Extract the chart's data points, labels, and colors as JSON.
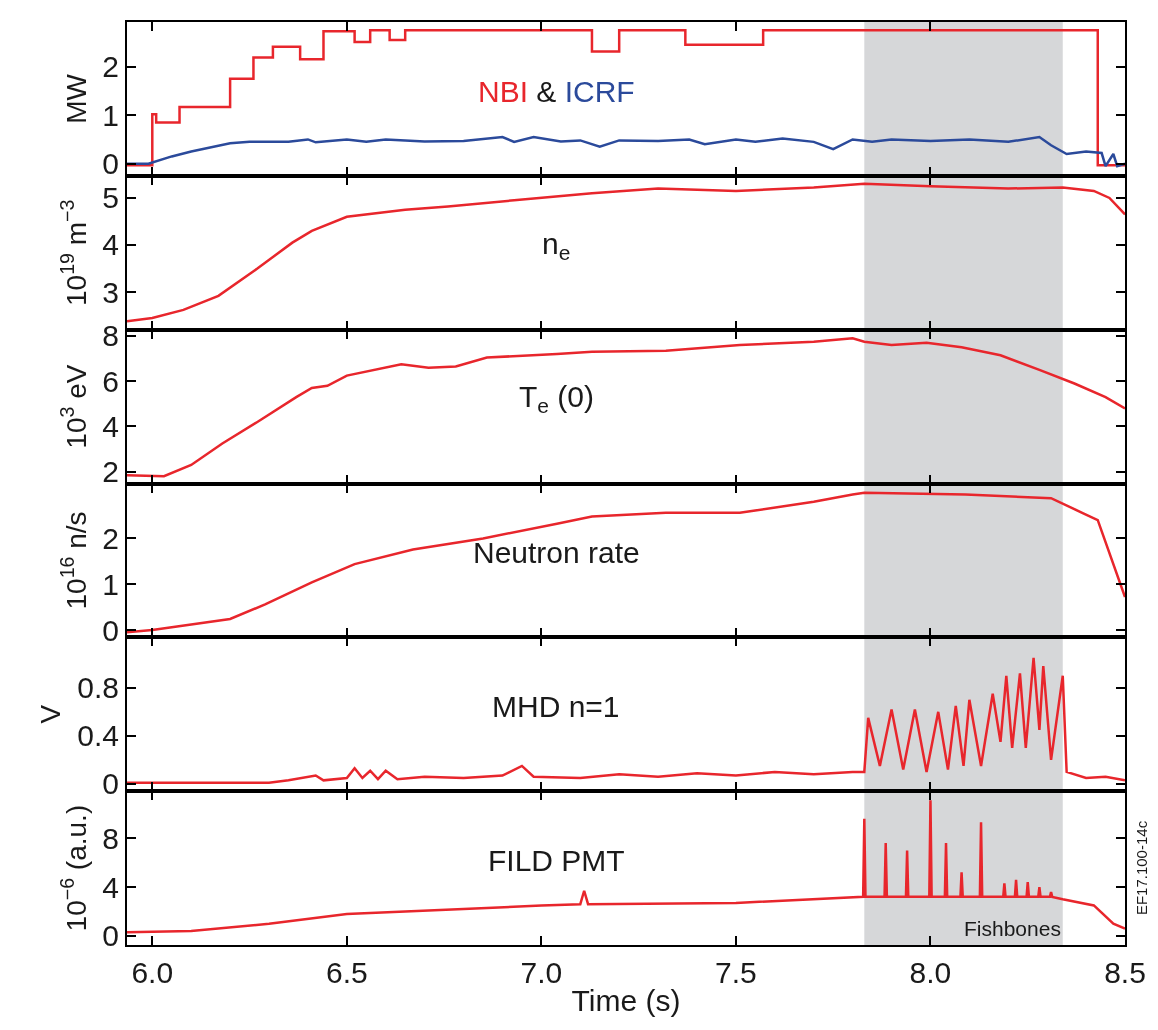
{
  "chart_data": [
    {
      "type": "line",
      "ylabel": "MW",
      "annotations": [
        "&"
      ],
      "tick_labels": "y",
      "grid": false,
      "xlim": [
        5.935,
        8.5
      ],
      "xticks": [
        {
          "value": 6.0,
          "label": null
        },
        {
          "value": 6.5,
          "label": null
        },
        {
          "value": 7.0,
          "label": null
        },
        {
          "value": 7.5,
          "label": null
        },
        {
          "value": 8.0,
          "label": null
        },
        {
          "value": 8.5,
          "label": null
        }
      ],
      "ylim": [
        -0.25,
        2.92
      ],
      "yticks": [
        0,
        1,
        2
      ],
      "bands": [
        {
          "axis": "x",
          "from": 7.83,
          "to": 8.34,
          "color": "#d6d7d9"
        }
      ],
      "series": [
        {
          "name": "NBI",
          "type": "step",
          "color": "#e8262c",
          "x": [
            5.935,
            6.0,
            6.01,
            6.07,
            6.2,
            6.26,
            6.31,
            6.38,
            6.44,
            6.52,
            6.56,
            6.61,
            6.65,
            7.13,
            7.2,
            7.37,
            7.57,
            8.43,
            8.5
          ],
          "values": [
            -0.03,
            1.02,
            0.85,
            1.17,
            1.75,
            2.19,
            2.41,
            2.15,
            2.73,
            2.51,
            2.75,
            2.55,
            2.75,
            2.31,
            2.75,
            2.45,
            2.75,
            -0.03,
            -0.03
          ]
        },
        {
          "name": "ICRF",
          "type": "line",
          "color": "#2b4a9b",
          "x": [
            5.935,
            5.99,
            6.05,
            6.1,
            6.2,
            6.25,
            6.35,
            6.4,
            6.42,
            6.5,
            6.55,
            6.6,
            6.7,
            6.8,
            6.9,
            6.93,
            6.98,
            7.05,
            7.1,
            7.15,
            7.2,
            7.3,
            7.38,
            7.42,
            7.5,
            7.55,
            7.62,
            7.7,
            7.75,
            7.8,
            7.85,
            7.9,
            8.0,
            8.1,
            8.2,
            8.28,
            8.31,
            8.35,
            8.4,
            8.44,
            8.45,
            8.47,
            8.48,
            8.5
          ],
          "values": [
            0.0,
            0.0,
            0.15,
            0.25,
            0.42,
            0.45,
            0.45,
            0.5,
            0.44,
            0.5,
            0.45,
            0.5,
            0.46,
            0.47,
            0.55,
            0.45,
            0.55,
            0.46,
            0.48,
            0.35,
            0.48,
            0.47,
            0.5,
            0.4,
            0.5,
            0.45,
            0.52,
            0.45,
            0.3,
            0.5,
            0.45,
            0.5,
            0.47,
            0.5,
            0.45,
            0.55,
            0.38,
            0.2,
            0.25,
            0.22,
            -0.05,
            0.2,
            -0.05,
            0.0
          ]
        }
      ]
    },
    {
      "type": "line",
      "title": "n$_{e}$",
      "ylabel": "10$^{19}$ m$^{−3}$",
      "tick_labels": "y",
      "grid": false,
      "xlim": [
        5.935,
        8.5
      ],
      "xticks": [
        {
          "value": 6.0,
          "label": null
        },
        {
          "value": 6.5,
          "label": null
        },
        {
          "value": 7.0,
          "label": null
        },
        {
          "value": 7.5,
          "label": null
        },
        {
          "value": 8.0,
          "label": null
        },
        {
          "value": 8.5,
          "label": null
        }
      ],
      "ylim": [
        2.2,
        5.47
      ],
      "yticks": [
        3,
        4,
        5
      ],
      "bands": [
        {
          "axis": "x",
          "from": 7.83,
          "to": 8.34,
          "color": "#d6d7d9"
        }
      ],
      "series": [
        {
          "color": "#e8262c",
          "x": [
            5.935,
            6.0,
            6.08,
            6.17,
            6.27,
            6.36,
            6.41,
            6.5,
            6.65,
            6.76,
            6.93,
            7.13,
            7.3,
            7.5,
            7.7,
            7.83,
            8.0,
            8.2,
            8.34,
            8.42,
            8.46,
            8.5
          ],
          "values": [
            2.38,
            2.45,
            2.62,
            2.92,
            3.5,
            4.05,
            4.3,
            4.6,
            4.75,
            4.82,
            4.95,
            5.1,
            5.2,
            5.15,
            5.22,
            5.3,
            5.25,
            5.2,
            5.22,
            5.15,
            5.0,
            4.65
          ]
        }
      ]
    },
    {
      "type": "line",
      "title": "T$_{e}$ (0)",
      "ylabel": "10$^{3}$ eV",
      "tick_labels": "y",
      "grid": false,
      "xlim": [
        5.935,
        8.5
      ],
      "xticks": [
        {
          "value": 6.0,
          "label": null
        },
        {
          "value": 6.5,
          "label": null
        },
        {
          "value": 7.0,
          "label": null
        },
        {
          "value": 7.5,
          "label": null
        },
        {
          "value": 8.0,
          "label": null
        },
        {
          "value": 8.5,
          "label": null
        }
      ],
      "ylim": [
        1.48,
        8.28
      ],
      "yticks": [
        2,
        4,
        6,
        8
      ],
      "bands": [
        {
          "axis": "x",
          "from": 7.83,
          "to": 8.34,
          "color": "#d6d7d9"
        }
      ],
      "series": [
        {
          "color": "#e8262c",
          "x": [
            5.935,
            6.03,
            6.1,
            6.18,
            6.27,
            6.37,
            6.41,
            6.45,
            6.5,
            6.64,
            6.71,
            6.78,
            6.86,
            7.04,
            7.13,
            7.32,
            7.51,
            7.7,
            7.8,
            7.83,
            7.9,
            7.99,
            8.08,
            8.18,
            8.28,
            8.37,
            8.45,
            8.5
          ],
          "values": [
            1.85,
            1.8,
            2.3,
            3.25,
            4.2,
            5.3,
            5.7,
            5.8,
            6.25,
            6.75,
            6.6,
            6.65,
            7.05,
            7.2,
            7.3,
            7.35,
            7.6,
            7.75,
            7.9,
            7.75,
            7.6,
            7.7,
            7.5,
            7.15,
            6.5,
            5.9,
            5.3,
            4.8
          ]
        }
      ]
    },
    {
      "type": "line",
      "title": "Neutron rate",
      "ylabel": "10$^{16}$ n/s",
      "tick_labels": "y",
      "grid": false,
      "xlim": [
        5.935,
        8.5
      ],
      "xticks": [
        {
          "value": 6.0,
          "label": null
        },
        {
          "value": 6.5,
          "label": null
        },
        {
          "value": 7.0,
          "label": null
        },
        {
          "value": 7.5,
          "label": null
        },
        {
          "value": 8.0,
          "label": null
        },
        {
          "value": 8.5,
          "label": null
        }
      ],
      "ylim": [
        -0.16,
        3.2
      ],
      "yticks": [
        0,
        1,
        2
      ],
      "bands": [
        {
          "axis": "x",
          "from": 7.83,
          "to": 8.34,
          "color": "#d6d7d9"
        }
      ],
      "series": [
        {
          "color": "#e8262c",
          "x": [
            5.935,
            6.0,
            6.2,
            6.29,
            6.41,
            6.52,
            6.67,
            6.85,
            7.04,
            7.13,
            7.32,
            7.51,
            7.7,
            7.8,
            7.83,
            8.09,
            8.31,
            8.39,
            8.43,
            8.5
          ],
          "values": [
            -0.05,
            0.0,
            0.24,
            0.56,
            1.04,
            1.44,
            1.76,
            2.0,
            2.32,
            2.48,
            2.56,
            2.56,
            2.8,
            2.96,
            3.0,
            2.96,
            2.88,
            2.56,
            2.4,
            0.72
          ]
        }
      ]
    },
    {
      "type": "line",
      "title": "MHD n=1",
      "ylabel": "V",
      "tick_labels": "y",
      "grid": false,
      "xlim": [
        5.935,
        8.5
      ],
      "xticks": [
        {
          "value": 6.0,
          "label": null
        },
        {
          "value": 6.5,
          "label": null
        },
        {
          "value": 7.0,
          "label": null
        },
        {
          "value": 7.5,
          "label": null
        },
        {
          "value": 8.0,
          "label": null
        },
        {
          "value": 8.5,
          "label": null
        }
      ],
      "ylim": [
        -0.06,
        1.22
      ],
      "yticks": [
        0,
        0.4,
        0.8
      ],
      "bands": [
        {
          "axis": "x",
          "from": 7.83,
          "to": 8.34,
          "color": "#d6d7d9"
        }
      ],
      "series": [
        {
          "color": "#e8262c",
          "x": [
            5.935,
            6.3,
            6.35,
            6.42,
            6.44,
            6.5,
            6.52,
            6.54,
            6.56,
            6.58,
            6.6,
            6.63,
            6.7,
            6.8,
            6.9,
            6.95,
            6.98,
            7.1,
            7.2,
            7.3,
            7.4,
            7.5,
            7.6,
            7.7,
            7.8,
            7.83,
            7.84,
            7.87,
            7.9,
            7.93,
            7.96,
            7.99,
            8.02,
            8.045,
            8.065,
            8.085,
            8.1,
            8.13,
            8.16,
            8.18,
            8.195,
            8.21,
            8.23,
            8.245,
            8.265,
            8.28,
            8.29,
            8.31,
            8.34,
            8.35,
            8.4,
            8.45,
            8.5
          ],
          "values": [
            0.01,
            0.01,
            0.03,
            0.07,
            0.03,
            0.05,
            0.13,
            0.05,
            0.11,
            0.04,
            0.11,
            0.04,
            0.06,
            0.05,
            0.07,
            0.15,
            0.06,
            0.05,
            0.08,
            0.06,
            0.09,
            0.07,
            0.1,
            0.08,
            0.1,
            0.1,
            0.55,
            0.15,
            0.62,
            0.12,
            0.62,
            0.1,
            0.6,
            0.12,
            0.65,
            0.15,
            0.7,
            0.15,
            0.75,
            0.35,
            0.9,
            0.3,
            0.92,
            0.3,
            1.05,
            0.45,
            0.98,
            0.2,
            0.9,
            0.1,
            0.05,
            0.06,
            0.03
          ]
        }
      ]
    },
    {
      "type": "line",
      "title": "FILD PMT",
      "ylabel": "10$^{−6}$ (a.u.)",
      "xlabel": "Time (s)",
      "annotations": [
        "EF17.100-14c"
      ],
      "grid": false,
      "xlim": [
        5.935,
        8.5
      ],
      "xticks": [
        {
          "value": 6.0,
          "label": "6.0"
        },
        {
          "value": 6.5,
          "label": "6.5"
        },
        {
          "value": 7.0,
          "label": "7.0"
        },
        {
          "value": 7.5,
          "label": "7.5"
        },
        {
          "value": 8.0,
          "label": "8.0"
        },
        {
          "value": 8.5,
          "label": "8.5"
        }
      ],
      "ylim": [
        -0.74,
        11.85
      ],
      "yticks": [
        0,
        4,
        8
      ],
      "bands": [
        {
          "axis": "x",
          "from": 7.83,
          "to": 8.34,
          "color": "#d6d7d9",
          "label": "Fishbones"
        }
      ],
      "series": [
        {
          "color": "#e8262c",
          "x": [
            5.935,
            6.1,
            6.3,
            6.5,
            6.8,
            7.0,
            7.1,
            7.11,
            7.12,
            7.5,
            7.827,
            7.83,
            7.833,
            7.882,
            7.885,
            7.888,
            7.937,
            7.94,
            7.943,
            7.997,
            8.0,
            8.003,
            8.037,
            8.04,
            8.043,
            8.077,
            8.08,
            8.083,
            8.127,
            8.13,
            8.133,
            8.187,
            8.19,
            8.193,
            8.217,
            8.22,
            8.223,
            8.247,
            8.25,
            8.253,
            8.277,
            8.28,
            8.283,
            8.307,
            8.31,
            8.313,
            8.34,
            8.42,
            8.47,
            8.5
          ],
          "values": [
            0.3,
            0.4,
            1.0,
            1.8,
            2.2,
            2.5,
            2.6,
            3.7,
            2.6,
            2.7,
            3.2,
            9.6,
            3.2,
            3.2,
            7.6,
            3.2,
            3.2,
            7.0,
            3.2,
            3.2,
            11.1,
            3.2,
            3.2,
            7.6,
            3.2,
            3.2,
            5.2,
            3.2,
            3.2,
            9.3,
            3.2,
            3.2,
            4.3,
            3.2,
            3.2,
            4.6,
            3.2,
            3.2,
            4.4,
            3.2,
            3.2,
            4.0,
            3.2,
            3.2,
            3.6,
            3.2,
            3.0,
            2.5,
            1.0,
            0.6
          ]
        }
      ]
    }
  ]
}
